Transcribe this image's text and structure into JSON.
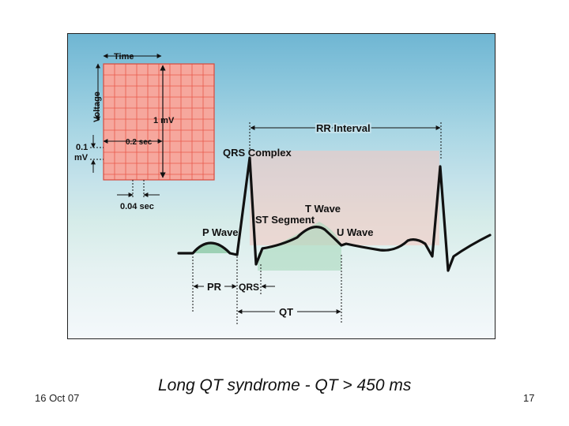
{
  "slide": {
    "date": "16 Oct 07",
    "title": "Long QT syndrome - QT > 450 ms",
    "page_number": "17"
  },
  "diagram": {
    "grid_labels": {
      "time": "Time",
      "voltage": "Voltage",
      "one_mv": "1 mV",
      "point_two_sec": "0.2 sec",
      "point_one": "0.1",
      "mv": "mV",
      "point_zero_four_sec": "0.04 sec"
    },
    "ecg_labels": {
      "rr_interval": "RR Interval",
      "qrs_complex": "QRS Complex",
      "t_wave": "T Wave",
      "st_segment": "ST Segment",
      "p_wave": "P Wave",
      "u_wave": "U Wave",
      "pr": "PR",
      "qrs": "QRS",
      "qt": "QT"
    },
    "colors": {
      "grid_fill": "#f6a79d",
      "grid_line": "#e8594c",
      "trace": "#111111",
      "pr_fill": "#8cc9a6",
      "st_fill": "#f5b7b0"
    }
  }
}
